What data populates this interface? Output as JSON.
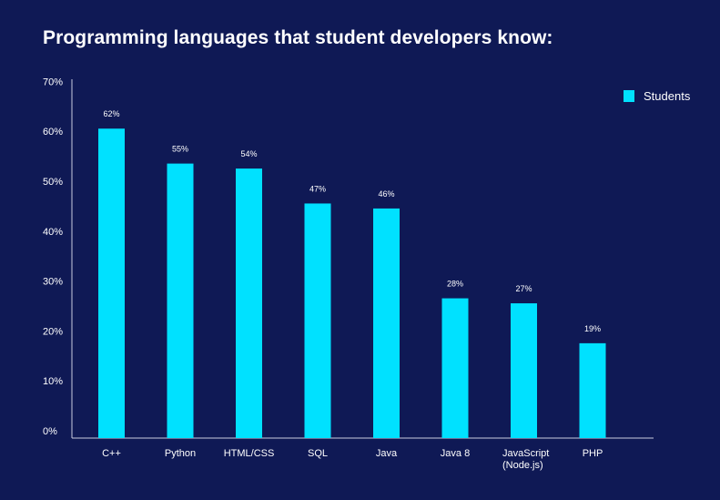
{
  "chart_data": {
    "type": "bar",
    "title": "Programming languages that student developers know:",
    "xlabel": "",
    "ylabel": "",
    "categories": [
      "C++",
      "Python",
      "HTML/CSS",
      "SQL",
      "Java",
      "Java 8",
      "JavaScript\n(Node.js)",
      "PHP"
    ],
    "series": [
      {
        "name": "Students",
        "values": [
          62,
          55,
          54,
          47,
          46,
          28,
          27,
          19
        ],
        "labels": [
          "62%",
          "55%",
          "54%",
          "47%",
          "46%",
          "28%",
          "27%",
          "19%"
        ]
      }
    ],
    "ylim": [
      0,
      70
    ],
    "yticks": [
      0,
      10,
      20,
      30,
      40,
      50,
      60,
      70
    ],
    "ytick_labels": [
      "0%",
      "10%",
      "20%",
      "30%",
      "40%",
      "50%",
      "60%",
      "70%"
    ],
    "grid": false,
    "legend": "top-right",
    "colors": {
      "background": "#0f1955",
      "bar": "#00e1ff",
      "axis": "#c8cce0",
      "text": "#ffffff"
    }
  }
}
